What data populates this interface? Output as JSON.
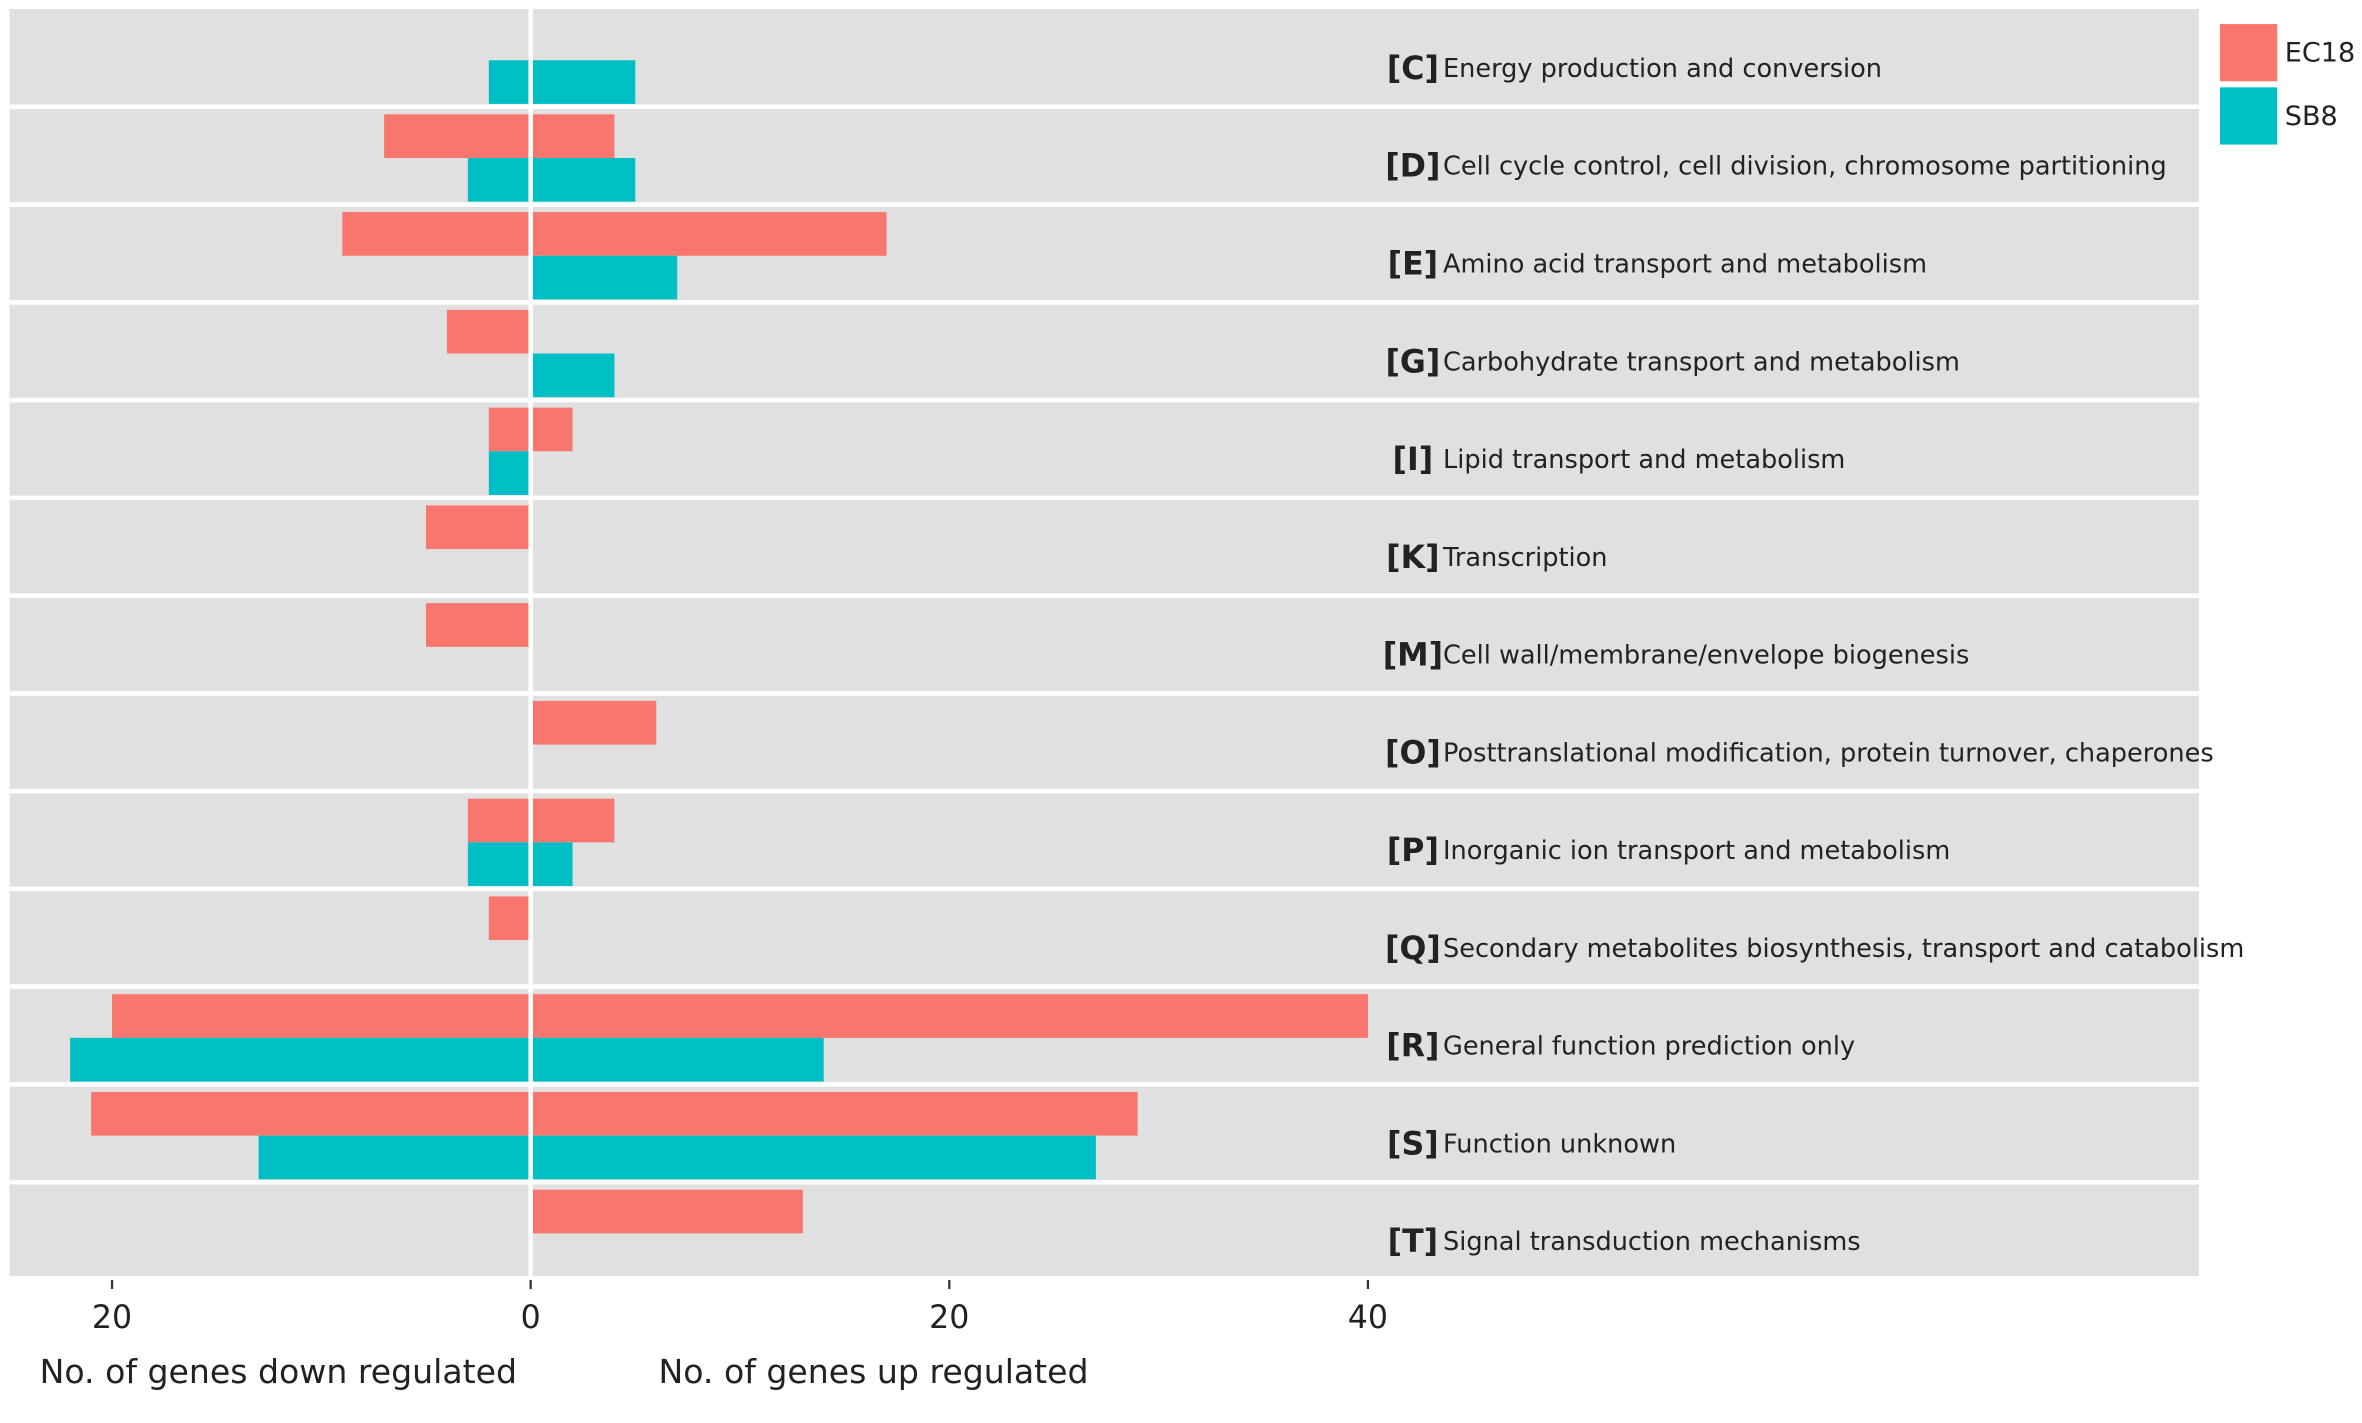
{
  "chart_data": {
    "type": "diverging-bar",
    "categories": [
      {
        "code": "[C]",
        "label": "Energy production and conversion"
      },
      {
        "code": "[D]",
        "label": "Cell cycle control, cell division, chromosome partitioning"
      },
      {
        "code": "[E]",
        "label": "Amino acid transport and metabolism"
      },
      {
        "code": "[G]",
        "label": "Carbohydrate transport and metabolism"
      },
      {
        "code": "[I]",
        "label": "Lipid transport and metabolism"
      },
      {
        "code": "[K]",
        "label": "Transcription"
      },
      {
        "code": "[M]",
        "label": "Cell wall/membrane/envelope biogenesis"
      },
      {
        "code": "[O]",
        "label": "Posttranslational modification, protein turnover, chaperones"
      },
      {
        "code": "[P]",
        "label": "Inorganic ion transport and metabolism"
      },
      {
        "code": "[Q]",
        "label": "Secondary metabolites biosynthesis, transport and catabolism"
      },
      {
        "code": "[R]",
        "label": "General function prediction only"
      },
      {
        "code": "[S]",
        "label": "Function unknown"
      },
      {
        "code": "[T]",
        "label": "Signal transduction mechanisms"
      }
    ],
    "series": [
      {
        "name": "EC18",
        "color": "#f8766d",
        "up": [
          0,
          4,
          17,
          0,
          2,
          0,
          0,
          6,
          4,
          0,
          40,
          29,
          13
        ],
        "down": [
          0,
          -7,
          -9,
          -4,
          -2,
          -5,
          -5,
          0,
          -3,
          -2,
          -20,
          -21,
          0
        ]
      },
      {
        "name": "SB8",
        "color": "#00bfc4",
        "up": [
          5,
          5,
          7,
          4,
          0,
          0,
          0,
          0,
          2,
          0,
          14,
          27,
          0
        ],
        "down": [
          -2,
          -3,
          0,
          0,
          -2,
          0,
          0,
          0,
          -3,
          0,
          -22,
          -13,
          0
        ]
      }
    ],
    "xlim": [
      -24.9,
      79.7
    ],
    "xticks": [
      {
        "value": -20,
        "label": "20"
      },
      0,
      20,
      40
    ],
    "xlabel_down": "No. of genes down regulated",
    "xlabel_up": "No. of genes up regulated"
  }
}
